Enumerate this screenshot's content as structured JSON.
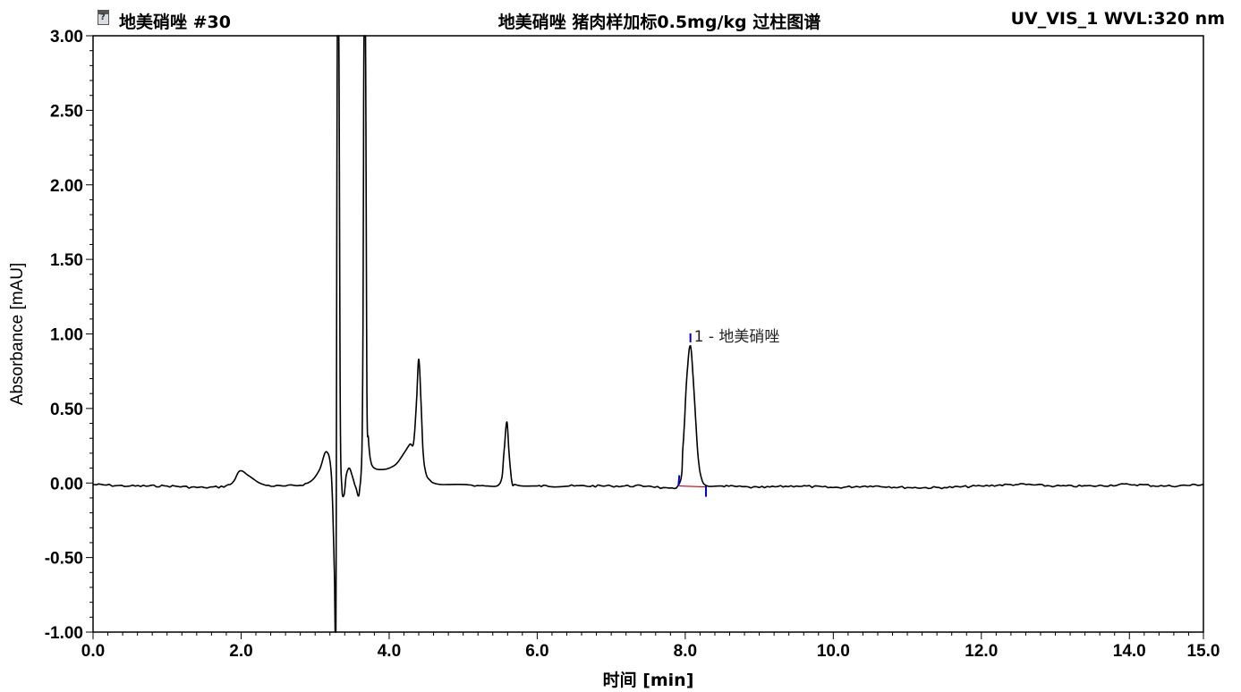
{
  "header": {
    "sample": "地美硝唑 #30",
    "title": "地美硝唑 猪肉样加标0.5mg/kg 过柱图谱",
    "channel": "UV_VIS_1 WVL:320 nm"
  },
  "chart_data": {
    "type": "line",
    "title": "地美硝唑 猪肉样加标0.5mg/kg 过柱图谱",
    "xlabel": "时间 [min]",
    "ylabel": "Absorbance [mAU]",
    "xlim": [
      0.0,
      15.0
    ],
    "ylim": [
      -1.0,
      3.0
    ],
    "xticks": [
      "0.0",
      "2.0",
      "4.0",
      "6.0",
      "8.0",
      "10.0",
      "12.0",
      "14.0",
      "15.0"
    ],
    "yticks": [
      "3.00",
      "2.50",
      "2.00",
      "1.50",
      "1.00",
      "0.50",
      "0.00",
      "-0.50",
      "-1.00"
    ],
    "grid": false,
    "colors": {
      "trace": "#000000",
      "baseline": "#d00000",
      "marker": "#0000c0"
    },
    "series": [
      {
        "x": [
          0.0,
          0.5,
          1.0,
          1.5,
          1.85,
          1.98,
          2.1,
          2.3,
          2.6,
          2.9,
          3.05,
          3.15,
          3.22,
          3.26,
          3.28,
          3.3,
          3.32,
          3.34,
          3.36,
          3.39,
          3.42,
          3.46,
          3.5,
          3.55,
          3.6,
          3.64,
          3.66,
          3.68,
          3.7,
          3.72,
          3.75,
          3.8,
          3.9,
          4.0,
          4.1,
          4.2,
          4.28,
          4.33,
          4.37,
          4.4,
          4.43,
          4.46,
          4.5,
          4.55,
          4.6,
          4.7,
          4.8,
          5.0,
          5.3,
          5.5,
          5.55,
          5.59,
          5.62,
          5.66,
          5.7,
          5.8,
          6.0,
          6.5,
          7.0,
          7.5,
          7.9,
          7.97,
          8.02,
          8.07,
          8.12,
          8.17,
          8.22,
          8.3,
          8.5,
          9.0,
          9.5,
          10.0,
          10.5,
          11.0,
          11.5,
          12.0,
          12.5,
          13.0,
          13.5,
          14.0,
          14.5,
          15.0
        ],
        "y": [
          -0.01,
          -0.02,
          -0.02,
          -0.03,
          -0.01,
          0.08,
          0.05,
          -0.01,
          -0.02,
          0.0,
          0.08,
          0.21,
          0.05,
          -0.6,
          -1.0,
          3.0,
          3.0,
          0.5,
          -0.02,
          -0.08,
          0.05,
          0.1,
          0.05,
          -0.03,
          -0.05,
          0.5,
          3.0,
          3.0,
          0.6,
          0.3,
          0.15,
          0.1,
          0.09,
          0.1,
          0.13,
          0.2,
          0.26,
          0.27,
          0.55,
          0.83,
          0.55,
          0.2,
          0.06,
          0.02,
          0.0,
          -0.01,
          -0.01,
          -0.01,
          -0.02,
          0.0,
          0.2,
          0.41,
          0.2,
          0.0,
          -0.01,
          -0.02,
          -0.02,
          -0.02,
          -0.02,
          -0.02,
          -0.02,
          0.25,
          0.7,
          0.92,
          0.6,
          0.2,
          0.03,
          -0.02,
          -0.02,
          -0.03,
          -0.02,
          -0.03,
          -0.02,
          -0.03,
          -0.03,
          -0.02,
          -0.01,
          -0.02,
          -0.02,
          -0.01,
          -0.02,
          -0.01
        ]
      }
    ],
    "peaks": [
      {
        "label": "1 - 地美硝唑",
        "rt": 8.07,
        "height": 0.92,
        "start": 7.92,
        "end": 8.28
      }
    ]
  }
}
